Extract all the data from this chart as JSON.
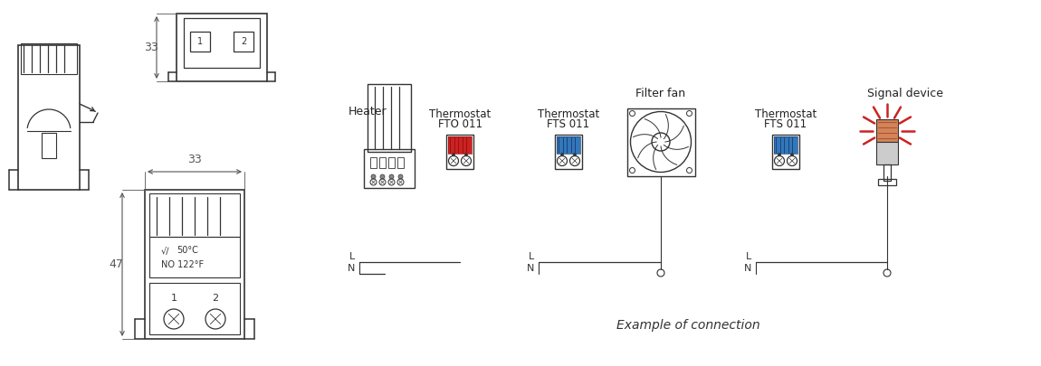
{
  "bg_color": "#ffffff",
  "line_color": "#333333",
  "dim_color": "#555555",
  "red_color": "#cc2222",
  "blue_color": "#3377bb",
  "red_signal": "#cc2222",
  "orange_signal": "#d4845a",
  "fig_width": 11.5,
  "fig_height": 4.05,
  "labels": {
    "heater": "Heater",
    "thermostat": "Thermostat",
    "fto011": "FTO 011",
    "fts011": "FTS 011",
    "filter_fan": "Filter fan",
    "signal_device": "Signal device",
    "example_connection": "Example of connection",
    "dim33_top": "33",
    "dim33_front": "33",
    "dim47": "47",
    "L": "L",
    "N": "N",
    "label1": "1",
    "label2": "2",
    "temp_c": "50°C",
    "temp_f": "NO 122°F"
  }
}
